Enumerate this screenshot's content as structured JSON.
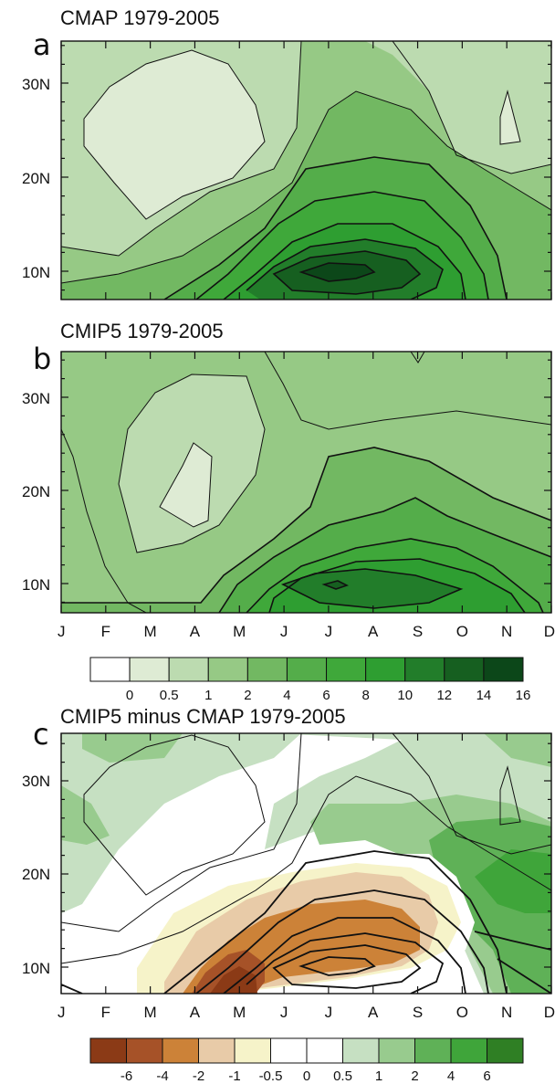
{
  "chart_data": [
    {
      "type": "contour",
      "panel_letter": "a",
      "title": "CMAP 1979-2005",
      "x": [
        "J",
        "F",
        "M",
        "A",
        "M",
        "J",
        "J",
        "A",
        "S",
        "O",
        "N",
        "D"
      ],
      "y_ticks": [
        "10N",
        "20N",
        "30N"
      ],
      "ylim": [
        7,
        35
      ],
      "max_region": {
        "month": "J",
        "lat": "9.5N",
        "value": 16
      },
      "contour_levels": [
        0,
        0.5,
        1,
        2,
        4,
        6,
        8,
        10,
        12,
        14,
        16
      ]
    },
    {
      "type": "contour",
      "panel_letter": "b",
      "title": "CMIP5 1979-2005",
      "x": [
        "J",
        "F",
        "M",
        "A",
        "M",
        "J",
        "J",
        "A",
        "S",
        "O",
        "N",
        "D"
      ],
      "y_ticks": [
        "10N",
        "20N",
        "30N"
      ],
      "ylim": [
        7,
        35
      ],
      "max_region": {
        "month": "J",
        "lat": "10N",
        "value": 14
      },
      "contour_levels": [
        0,
        0.5,
        1,
        2,
        4,
        6,
        8,
        10,
        12,
        14,
        16
      ]
    },
    {
      "type": "contour",
      "panel_letter": "c",
      "title": "CMIP5 minus CMAP 1979-2005",
      "x": [
        "J",
        "F",
        "M",
        "A",
        "M",
        "J",
        "J",
        "A",
        "S",
        "O",
        "N",
        "D"
      ],
      "y_ticks": [
        "10N",
        "20N",
        "30N"
      ],
      "ylim": [
        7,
        35
      ],
      "min_region": {
        "month": "M",
        "lat": "9N",
        "value": -6
      },
      "contour_levels": [
        -6,
        -4,
        -2,
        -1,
        -0.5,
        0,
        0.5,
        1,
        2,
        4,
        6
      ]
    }
  ],
  "colorbar_top": {
    "labels": [
      "0",
      "0.5",
      "1",
      "2",
      "4",
      "6",
      "8",
      "10",
      "12",
      "14",
      "16"
    ],
    "colors": [
      "#ffffff",
      "#deebd4",
      "#bcdbb0",
      "#96c985",
      "#72b862",
      "#54ad4a",
      "#3fa83a",
      "#2e9e31",
      "#227d2a",
      "#165f20",
      "#0c4719"
    ]
  },
  "colorbar_bottom": {
    "labels": [
      "-6",
      "-4",
      "-2",
      "-1",
      "-0.5",
      "0",
      "0.5",
      "1",
      "2",
      "4",
      "6"
    ],
    "colors": [
      "#8b3a16",
      "#a65228",
      "#cc8238",
      "#e8cba8",
      "#f6f3c9",
      "#ffffff",
      "#ffffff",
      "#c6e0c2",
      "#98cb8e",
      "#5fb157",
      "#3fa53a",
      "#2f7f24"
    ]
  }
}
